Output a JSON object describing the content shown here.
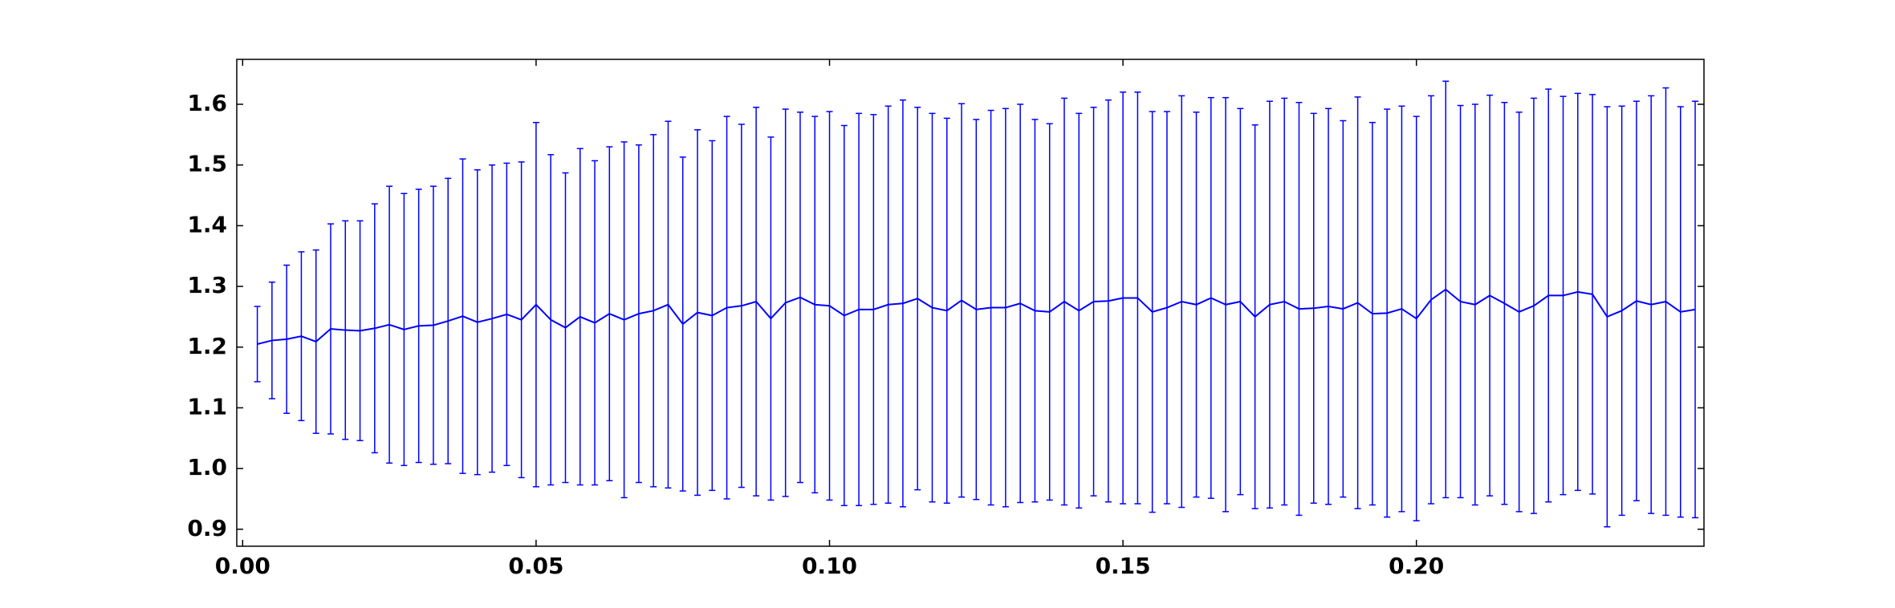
{
  "chart_data": {
    "type": "errorbar",
    "x": [
      0.0025,
      0.005,
      0.0075,
      0.01,
      0.0125,
      0.015,
      0.0175,
      0.02,
      0.0225,
      0.025,
      0.0275,
      0.03,
      0.0325,
      0.035,
      0.0375,
      0.04,
      0.0425,
      0.045,
      0.0475,
      0.05,
      0.0525,
      0.055,
      0.0575,
      0.06,
      0.0625,
      0.065,
      0.0675,
      0.07,
      0.0725,
      0.075,
      0.0775,
      0.08,
      0.0825,
      0.085,
      0.0875,
      0.09,
      0.0925,
      0.095,
      0.0975,
      0.1,
      0.1025,
      0.105,
      0.1075,
      0.11,
      0.1125,
      0.115,
      0.1175,
      0.12,
      0.1225,
      0.125,
      0.1275,
      0.13,
      0.1325,
      0.135,
      0.1375,
      0.14,
      0.1425,
      0.145,
      0.1475,
      0.15,
      0.1525,
      0.155,
      0.1575,
      0.16,
      0.1625,
      0.165,
      0.1675,
      0.17,
      0.1725,
      0.175,
      0.1775,
      0.18,
      0.1825,
      0.185,
      0.1875,
      0.19,
      0.1925,
      0.195,
      0.1975,
      0.2,
      0.2025,
      0.205,
      0.2075,
      0.21,
      0.2125,
      0.215,
      0.2175,
      0.22,
      0.2225,
      0.225,
      0.2275,
      0.23,
      0.2325,
      0.235,
      0.2375,
      0.24,
      0.2425,
      0.245,
      0.2475
    ],
    "series": [
      {
        "color": "#0000ff",
        "values": [
          1.205,
          1.211,
          1.213,
          1.218,
          1.209,
          1.23,
          1.228,
          1.227,
          1.231,
          1.237,
          1.229,
          1.235,
          1.236,
          1.243,
          1.251,
          1.241,
          1.247,
          1.254,
          1.245,
          1.27,
          1.245,
          1.232,
          1.25,
          1.24,
          1.255,
          1.245,
          1.255,
          1.26,
          1.27,
          1.238,
          1.257,
          1.252,
          1.265,
          1.268,
          1.275,
          1.247,
          1.273,
          1.282,
          1.27,
          1.268,
          1.252,
          1.262,
          1.262,
          1.27,
          1.272,
          1.28,
          1.265,
          1.26,
          1.277,
          1.262,
          1.265,
          1.265,
          1.272,
          1.26,
          1.258,
          1.275,
          1.26,
          1.275,
          1.276,
          1.281,
          1.281,
          1.258,
          1.265,
          1.275,
          1.27,
          1.281,
          1.27,
          1.275,
          1.25,
          1.27,
          1.275,
          1.263,
          1.264,
          1.267,
          1.263,
          1.273,
          1.255,
          1.256,
          1.263,
          1.247,
          1.278,
          1.295,
          1.275,
          1.27,
          1.285,
          1.272,
          1.258,
          1.268,
          1.285,
          1.285,
          1.291,
          1.287,
          1.25,
          1.26,
          1.276,
          1.27,
          1.275,
          1.258,
          1.262
        ],
        "errors": [
          0.062,
          0.096,
          0.122,
          0.139,
          0.151,
          0.173,
          0.18,
          0.181,
          0.205,
          0.228,
          0.224,
          0.225,
          0.229,
          0.235,
          0.259,
          0.251,
          0.253,
          0.249,
          0.26,
          0.3,
          0.272,
          0.255,
          0.277,
          0.267,
          0.275,
          0.293,
          0.278,
          0.29,
          0.302,
          0.275,
          0.301,
          0.288,
          0.315,
          0.299,
          0.32,
          0.299,
          0.319,
          0.305,
          0.31,
          0.32,
          0.313,
          0.323,
          0.321,
          0.327,
          0.335,
          0.315,
          0.32,
          0.317,
          0.324,
          0.313,
          0.325,
          0.328,
          0.328,
          0.315,
          0.31,
          0.335,
          0.325,
          0.32,
          0.331,
          0.339,
          0.339,
          0.33,
          0.323,
          0.339,
          0.317,
          0.33,
          0.341,
          0.318,
          0.316,
          0.335,
          0.335,
          0.34,
          0.321,
          0.326,
          0.31,
          0.339,
          0.315,
          0.336,
          0.334,
          0.333,
          0.336,
          0.343,
          0.323,
          0.33,
          0.33,
          0.331,
          0.329,
          0.342,
          0.34,
          0.328,
          0.327,
          0.329,
          0.346,
          0.337,
          0.329,
          0.344,
          0.352,
          0.338,
          0.343
        ]
      }
    ],
    "xlim": [
      -0.001,
      0.249
    ],
    "ylim": [
      0.872,
      1.674
    ],
    "xticks": [
      {
        "value": 0,
        "label": "0.00"
      },
      {
        "value": 0.05,
        "label": "0.05"
      },
      {
        "value": 0.1,
        "label": "0.10"
      },
      {
        "value": 0.15,
        "label": "0.15"
      },
      {
        "value": 0.2,
        "label": "0.20"
      }
    ],
    "yticks": [
      0.9,
      {
        "value": 1,
        "label": "1.0"
      },
      1.1,
      1.2,
      1.3,
      1.4,
      1.5,
      1.6
    ],
    "grid": false
  }
}
